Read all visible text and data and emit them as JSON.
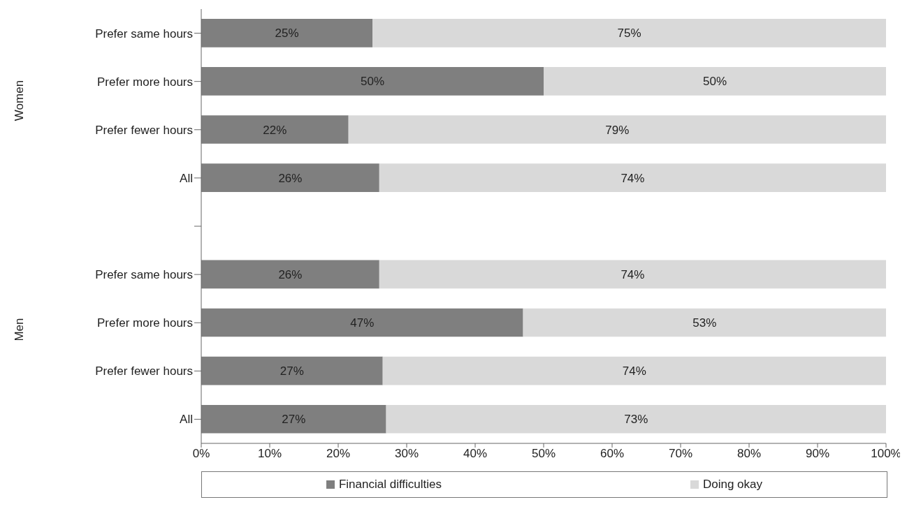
{
  "chart_data": {
    "type": "bar",
    "orientation": "horizontal",
    "stacked": true,
    "categories": [
      "Prefer same hours",
      "Prefer more hours",
      "Prefer fewer hours",
      "All",
      null,
      "Prefer same hours",
      "Prefer more hours",
      "Prefer fewer hours",
      "All"
    ],
    "series": [
      {
        "name": "Financial difficulties",
        "color": "#7f7f7f",
        "values": [
          25,
          50,
          21.5,
          26,
          null,
          26,
          47,
          26.5,
          27
        ],
        "value_labels": [
          "25%",
          "50%",
          "22%",
          "26%",
          null,
          "26%",
          "47%",
          "27%",
          "27%"
        ]
      },
      {
        "name": "Doing okay",
        "color": "#d9d9d9",
        "values": [
          75,
          50,
          78.5,
          74,
          null,
          74,
          53,
          73.5,
          73
        ],
        "value_labels": [
          "75%",
          "50%",
          "79%",
          "74%",
          null,
          "74%",
          "53%",
          "74%",
          "73%"
        ]
      }
    ],
    "annotations": [
      "Women",
      "Men"
    ],
    "xlim": [
      0,
      100
    ],
    "xticks": [
      {
        "value": 0,
        "label": "0%"
      },
      {
        "value": 10,
        "label": "10%"
      },
      {
        "value": 20,
        "label": "20%"
      },
      {
        "value": 30,
        "label": "30%"
      },
      {
        "value": 40,
        "label": "40%"
      },
      {
        "value": 50,
        "label": "50%"
      },
      {
        "value": 60,
        "label": "60%"
      },
      {
        "value": 70,
        "label": "70%"
      },
      {
        "value": 80,
        "label": "80%"
      },
      {
        "value": 90,
        "label": "90%"
      },
      {
        "value": 100,
        "label": "100%"
      }
    ],
    "grid": false,
    "legend": "bottom"
  }
}
